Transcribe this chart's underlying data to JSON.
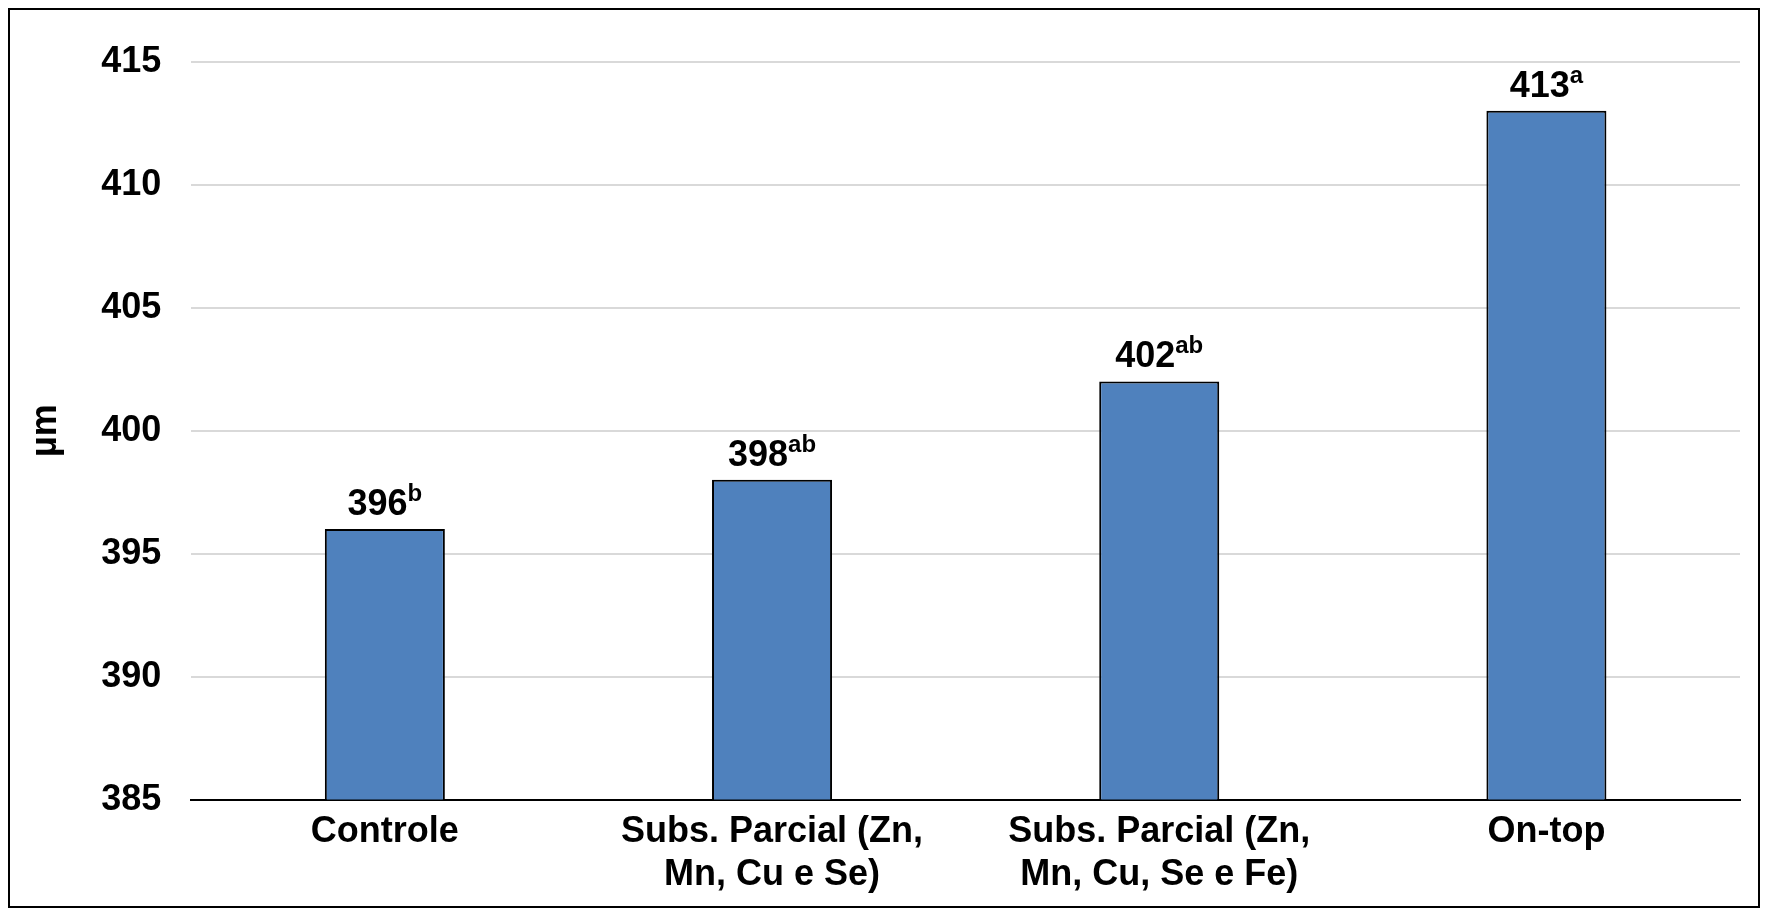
{
  "chart_data": {
    "type": "bar",
    "ylabel": "µm",
    "categories": [
      "Controle",
      "Subs. Parcial (Zn, Mn, Cu e Se)",
      "Subs. Parcial (Zn, Mn, Cu, Se e Fe)",
      "On-top"
    ],
    "values": [
      396,
      398,
      402,
      413
    ],
    "color": "#4f81bd",
    "value_labels": [
      "396$^{b}$",
      "398$^{ab}$",
      "402$^{ab}$",
      "413$^{a}$"
    ],
    "ylim": [
      385,
      415
    ],
    "yticks": [
      385,
      390,
      395,
      400,
      405,
      410,
      415
    ],
    "grid": "y",
    "legend": false
  }
}
